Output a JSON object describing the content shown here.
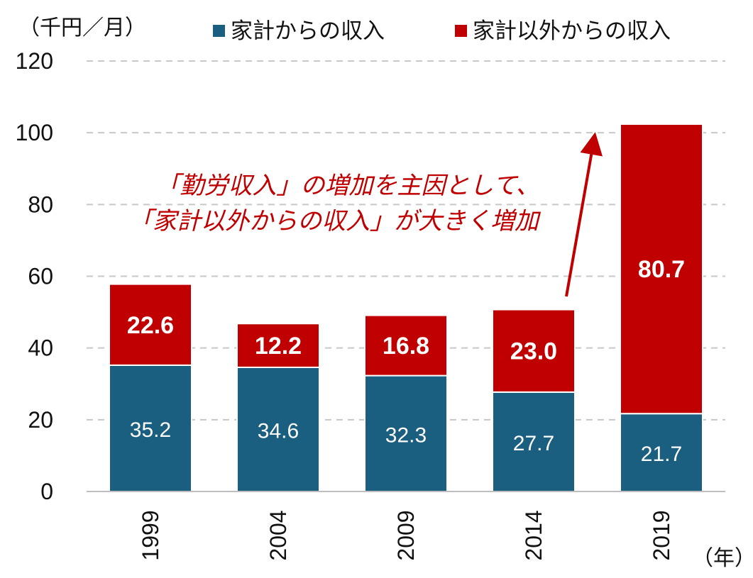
{
  "chart_data": {
    "type": "bar",
    "stacked": true,
    "title": "",
    "y_unit_label": "（千円／月）",
    "x_unit_label": "（年）",
    "categories": [
      "1999",
      "2004",
      "2009",
      "2014",
      "2019"
    ],
    "series": [
      {
        "name": "家計からの収入",
        "color": "#1a5e80",
        "values": [
          35.2,
          34.6,
          32.3,
          27.7,
          21.7
        ]
      },
      {
        "name": "家計以外からの収入",
        "color": "#c00000",
        "values": [
          22.6,
          12.2,
          16.8,
          23.0,
          80.7
        ]
      }
    ],
    "ylim": [
      0,
      120
    ],
    "yticks": [
      "0",
      "20",
      "40",
      "60",
      "80",
      "100",
      "120"
    ],
    "grid": true,
    "legend_position": "top",
    "annotation": {
      "lines": [
        "「勤労収入」の増加を主因として、",
        "「家計以外からの収入」が大きく増加"
      ],
      "color": "#c00000"
    }
  }
}
